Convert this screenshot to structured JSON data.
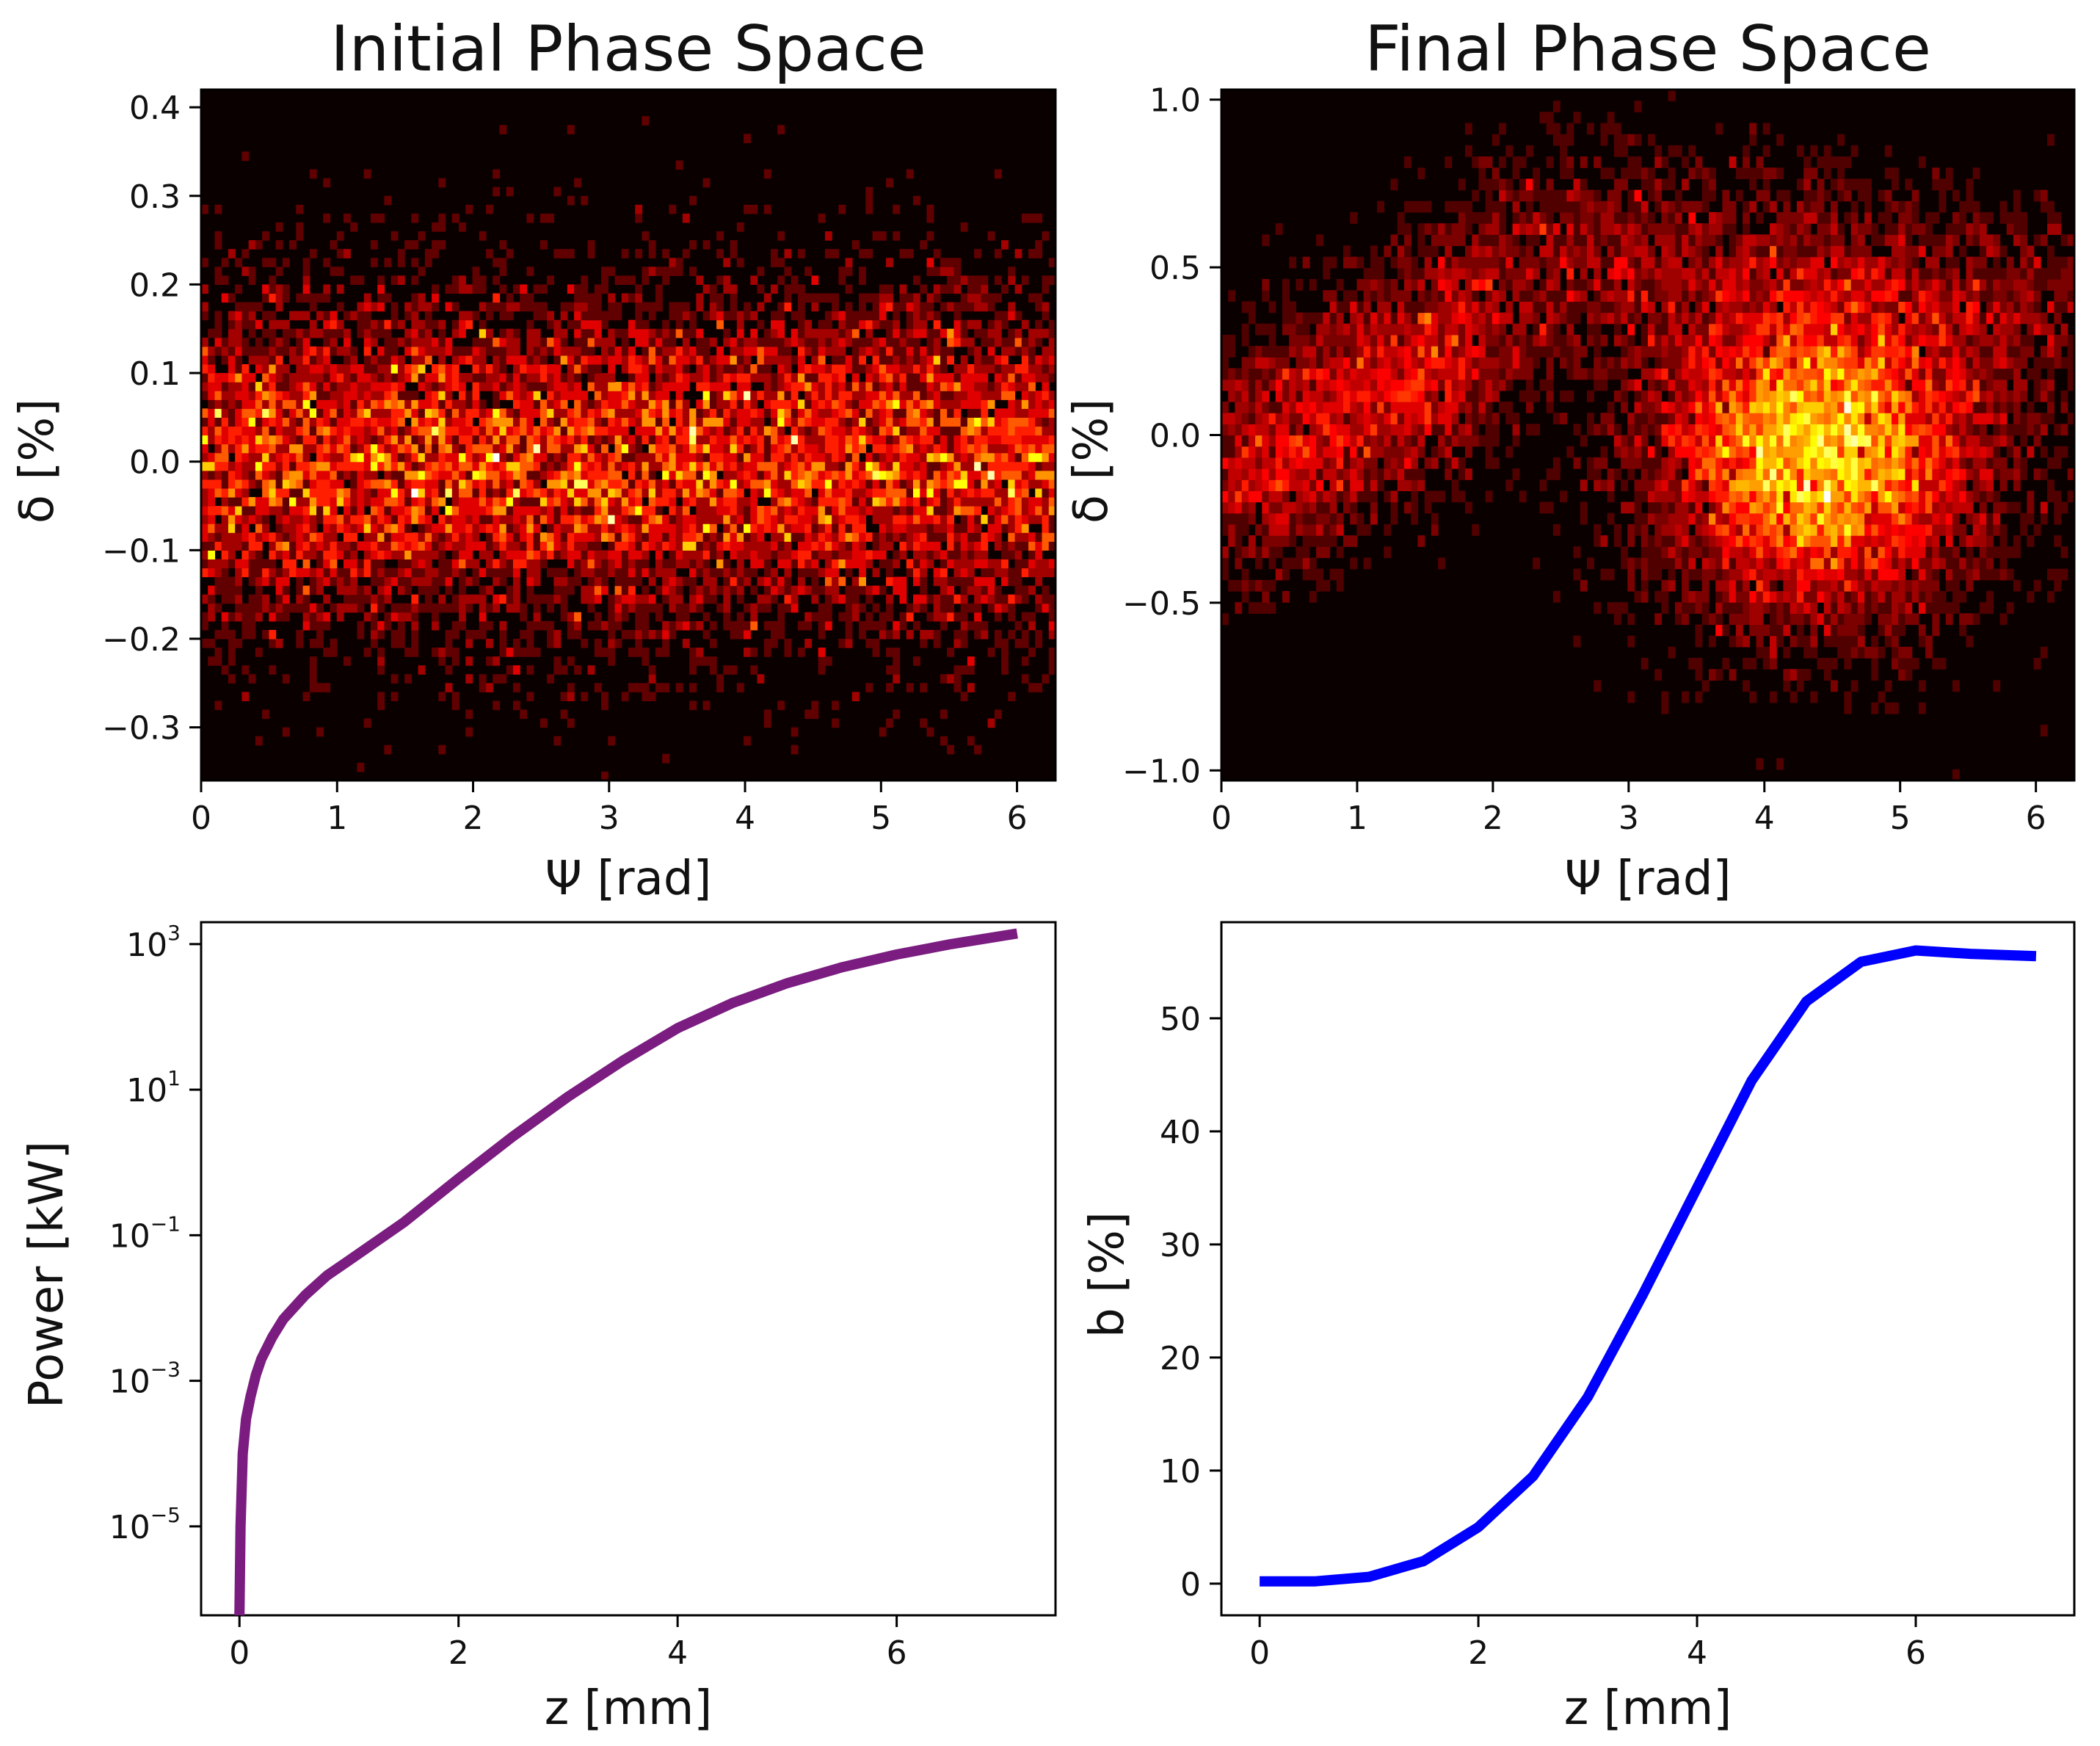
{
  "chart_data": [
    {
      "type": "heatmap",
      "title": "Initial Phase Space",
      "xlabel": "Ψ [rad]",
      "ylabel": "δ [%]",
      "xlim": [
        0,
        6.283
      ],
      "ylim": [
        -0.36,
        0.42
      ],
      "xticks": [
        0,
        1,
        2,
        3,
        4,
        5,
        6
      ],
      "xtick_labels": [
        "0",
        "1",
        "2",
        "3",
        "4",
        "5",
        "6"
      ],
      "yticks": [
        -0.3,
        -0.2,
        -0.1,
        0.0,
        0.1,
        0.2,
        0.3,
        0.4
      ],
      "ytick_labels": [
        "−0.3",
        "−0.2",
        "−0.1",
        "0.0",
        "0.1",
        "0.2",
        "0.3",
        "0.4"
      ],
      "colormap": "hot",
      "distribution": {
        "description": "uniform in Ψ, gaussian in δ",
        "delta_mean": 0.0,
        "delta_sigma": 0.1
      },
      "grid": false
    },
    {
      "type": "heatmap",
      "title": "Final Phase Space",
      "xlabel": "Ψ [rad]",
      "ylabel": "δ [%]",
      "xlim": [
        0,
        6.283
      ],
      "ylim": [
        -1.03,
        1.03
      ],
      "xticks": [
        0,
        1,
        2,
        3,
        4,
        5,
        6
      ],
      "xtick_labels": [
        "0",
        "1",
        "2",
        "3",
        "4",
        "5",
        "6"
      ],
      "yticks": [
        -1.0,
        -0.5,
        0.0,
        0.5,
        1.0
      ],
      "ytick_labels": [
        "−1.0",
        "−0.5",
        "0.0",
        "0.5",
        "1.0"
      ],
      "colormap": "hot",
      "distribution": {
        "description": "bunched core with arm",
        "core_psi": 4.4,
        "core_delta": -0.05,
        "core_sigma_psi": 0.65,
        "core_sigma_delta": 0.25,
        "arm_start_psi": 0.0,
        "arm_start_delta": -0.15,
        "arm_end_psi": 2.0,
        "arm_end_delta": 0.32
      },
      "grid": false
    },
    {
      "type": "line",
      "title": "",
      "xlabel": "z [mm]",
      "ylabel": "Power [kW]",
      "yscale": "log",
      "xlim": [
        -0.35,
        7.45
      ],
      "ylim": [
        6e-07,
        2000.0
      ],
      "xticks": [
        0,
        2,
        4,
        6
      ],
      "xtick_labels": [
        "0",
        "2",
        "4",
        "6"
      ],
      "yticks": [
        1e-05,
        0.001,
        0.1,
        10.0,
        1000.0
      ],
      "ytick_labels": [
        {
          "base": "10",
          "exp": "−5"
        },
        {
          "base": "10",
          "exp": "−3"
        },
        {
          "base": "10",
          "exp": "−1"
        },
        {
          "base": "10",
          "exp": "1"
        },
        {
          "base": "10",
          "exp": "3"
        }
      ],
      "series": [
        {
          "name": "Power",
          "color": "#7a1c80",
          "x": [
            0.0,
            0.01,
            0.03,
            0.06,
            0.1,
            0.15,
            0.2,
            0.3,
            0.4,
            0.6,
            0.8,
            1.0,
            1.5,
            2.0,
            2.5,
            3.0,
            3.5,
            4.0,
            4.5,
            5.0,
            5.5,
            6.0,
            6.5,
            7.1
          ],
          "y": [
            6e-07,
            1e-05,
            0.0001,
            0.0003,
            0.0006,
            0.0012,
            0.002,
            0.004,
            0.007,
            0.015,
            0.028,
            0.045,
            0.15,
            0.6,
            2.3,
            8,
            25,
            70,
            155,
            290,
            480,
            720,
            1000,
            1400
          ]
        }
      ],
      "grid": false
    },
    {
      "type": "line",
      "title": "",
      "xlabel": "z [mm]",
      "ylabel": "b [%]",
      "xlim": [
        -0.35,
        7.45
      ],
      "ylim": [
        -2.8,
        58.5
      ],
      "xticks": [
        0,
        2,
        4,
        6
      ],
      "xtick_labels": [
        "0",
        "2",
        "4",
        "6"
      ],
      "yticks": [
        0,
        10,
        20,
        30,
        40,
        50
      ],
      "ytick_labels": [
        "0",
        "10",
        "20",
        "30",
        "40",
        "50"
      ],
      "series": [
        {
          "name": "b",
          "color": "#0000ff",
          "x": [
            0.0,
            0.5,
            1.0,
            1.5,
            2.0,
            2.5,
            3.0,
            3.5,
            4.0,
            4.5,
            5.0,
            5.5,
            6.0,
            6.5,
            7.1
          ],
          "y": [
            0.2,
            0.2,
            0.6,
            2.0,
            5.0,
            9.5,
            16.5,
            25.5,
            35.0,
            44.5,
            51.5,
            55.0,
            56.0,
            55.7,
            55.5
          ]
        }
      ],
      "grid": false
    }
  ]
}
